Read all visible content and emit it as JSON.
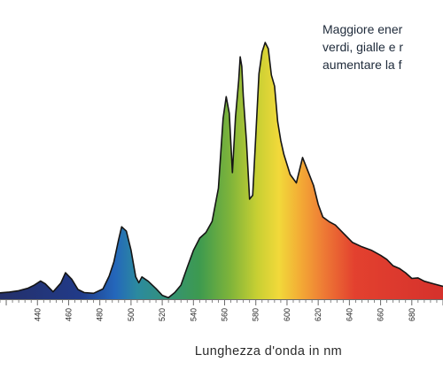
{
  "chart_data": {
    "type": "area",
    "title": "",
    "xlabel": "Lunghezza d'onda in nm",
    "ylabel": "",
    "xlim": [
      416,
      700
    ],
    "ylim": [
      0,
      100
    ],
    "grid": false,
    "legend": "none",
    "tick_labels": [
      "440",
      "460",
      "480",
      "500",
      "520",
      "540",
      "560",
      "580",
      "600",
      "620",
      "640",
      "660",
      "680"
    ],
    "annotation": [
      "Maggiore ener",
      "verdi, gialle e r",
      "aumentare la f"
    ],
    "series": [
      {
        "x": [
          416,
          422,
          428,
          434,
          438,
          442,
          445,
          450,
          455,
          458,
          462,
          466,
          470,
          476,
          482,
          486,
          489,
          492,
          494,
          497,
          500,
          503,
          505,
          507,
          511,
          516,
          520,
          524,
          528,
          532,
          536,
          540,
          544,
          548,
          552,
          556,
          559,
          561,
          563,
          565,
          567,
          569,
          570,
          571,
          572,
          574,
          576,
          578,
          580,
          582,
          584,
          586,
          588,
          590,
          592,
          594,
          596,
          598,
          602,
          606,
          610,
          614,
          617,
          620,
          623,
          627,
          631,
          636,
          642,
          648,
          654,
          660,
          664,
          668,
          672,
          676,
          680,
          684,
          688,
          694,
          700
        ],
        "y": [
          2.5,
          2.8,
          3.3,
          4.3,
          5.5,
          7.1,
          6.0,
          2.9,
          6.3,
          10.3,
          7.8,
          3.8,
          2.6,
          2.3,
          4.0,
          9.0,
          14.5,
          23.1,
          28.2,
          26.5,
          19.1,
          8.7,
          6.4,
          8.7,
          7.0,
          4.1,
          1.5,
          0.6,
          2.6,
          5.5,
          12.4,
          19.0,
          23.8,
          26.0,
          30.3,
          43.2,
          70.4,
          78.9,
          72.4,
          49.3,
          71.0,
          85.2,
          94.4,
          90.7,
          79.0,
          61.4,
          39.0,
          40.5,
          63.7,
          87.9,
          96.3,
          100.0,
          97.6,
          87.3,
          83.0,
          69.2,
          61.8,
          56.4,
          48.6,
          45.3,
          55.2,
          49.0,
          44.3,
          36.9,
          32.0,
          30.2,
          28.9,
          25.8,
          22.1,
          20.4,
          19.1,
          17.1,
          15.5,
          13.0,
          12.0,
          10.3,
          8.1,
          8.3,
          7.0,
          6.0,
          5.0
        ]
      }
    ],
    "colors": {
      "spectrum": [
        "#24306a",
        "#213a88",
        "#2467bb",
        "#2b8a9f",
        "#3d9a4f",
        "#7fb43a",
        "#c7cf33",
        "#f2d93a",
        "#f3a935",
        "#ee7b35",
        "#e3412f",
        "#d5312c"
      ],
      "outline": "#151515"
    }
  }
}
